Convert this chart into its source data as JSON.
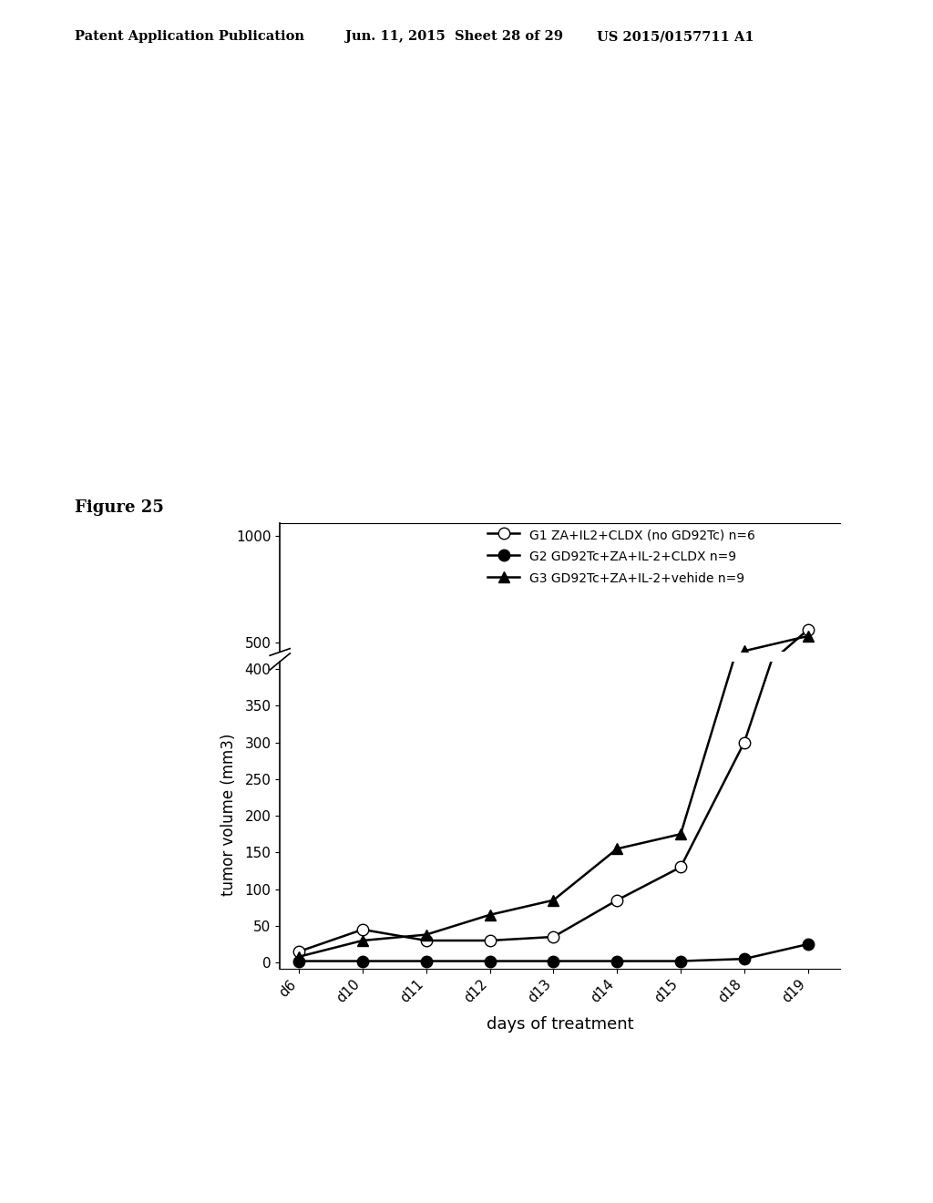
{
  "x_labels": [
    "d6",
    "d10",
    "d11",
    "d12",
    "d13",
    "d14",
    "d15",
    "d18",
    "d19"
  ],
  "x_positions": [
    0,
    1,
    2,
    3,
    4,
    5,
    6,
    7,
    8
  ],
  "g1_label": "G1 ZA+IL2+CLDX (no GD92Tc) n=6",
  "g1_values": [
    15,
    45,
    30,
    30,
    35,
    85,
    130,
    300,
    560
  ],
  "g1_marker": "o",
  "g1_markerfacecolor": "white",
  "g2_label": "G2 GD92Tc+ZA+IL-2+CLDX n=9",
  "g2_values": [
    2,
    2,
    2,
    2,
    2,
    2,
    2,
    5,
    25
  ],
  "g2_marker": "o",
  "g2_markerfacecolor": "black",
  "g3_label": "G3 GD92Tc+ZA+IL-2+vehide n=9",
  "g3_values": [
    8,
    30,
    38,
    65,
    85,
    155,
    175,
    460,
    530
  ],
  "g3_marker": "^",
  "g3_markerfacecolor": "black",
  "ylabel": "tumor volume (mm3)",
  "xlabel": "days of treatment",
  "figure_label": "Figure 25",
  "header_left": "Patent Application Publication",
  "header_mid": "Jun. 11, 2015  Sheet 28 of 29",
  "header_right": "US 2015/0157711 A1",
  "background_color": "#ffffff",
  "line_width": 1.8,
  "marker_size": 9
}
